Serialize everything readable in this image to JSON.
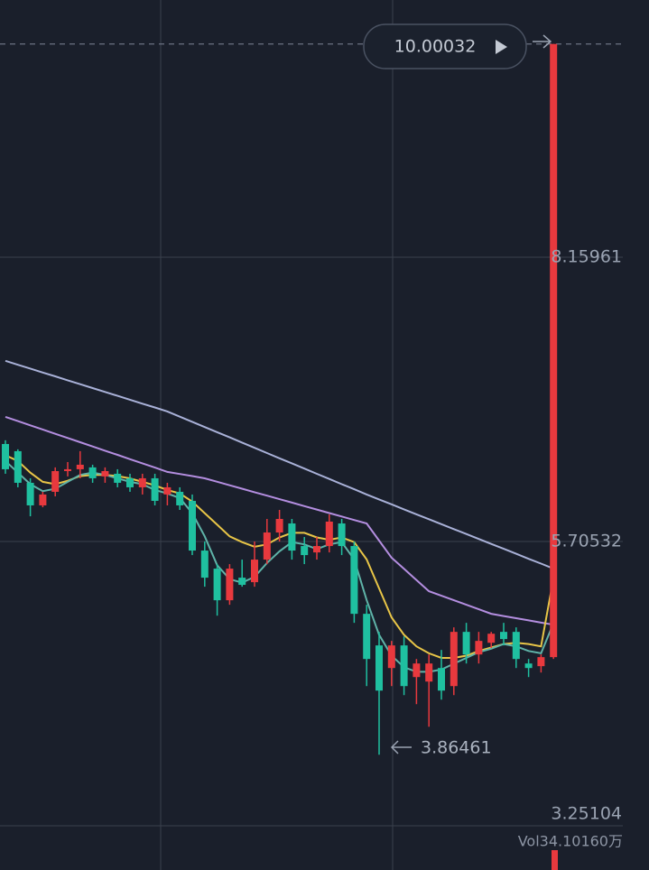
{
  "chart_data": {
    "type": "candlestick",
    "open": [
      6.547,
      6.485,
      6.212,
      6.017,
      6.134,
      6.313,
      6.329,
      6.345,
      6.267,
      6.29,
      6.251,
      6.173,
      6.251,
      6.111,
      6.134,
      6.056,
      5.627,
      5.471,
      5.198,
      5.393,
      5.354,
      5.549,
      5.783,
      5.861,
      5.666,
      5.611,
      5.666,
      5.861,
      5.666,
      5.081,
      4.808,
      4.613,
      4.808,
      4.535,
      4.496,
      4.613,
      4.457,
      4.925,
      4.73,
      4.831,
      4.925,
      4.925,
      4.652,
      4.629,
      4.707
    ],
    "high": [
      6.579,
      6.501,
      6.251,
      6.134,
      6.345,
      6.391,
      6.485,
      6.368,
      6.345,
      6.329,
      6.29,
      6.29,
      6.29,
      6.212,
      6.173,
      6.111,
      5.705,
      5.51,
      5.51,
      5.549,
      5.705,
      5.9,
      5.978,
      5.9,
      5.744,
      5.744,
      5.939,
      5.9,
      5.705,
      5.159,
      4.925,
      4.847,
      4.886,
      4.691,
      4.73,
      4.769,
      4.964,
      5.003,
      4.925,
      4.925,
      5.003,
      4.964,
      4.691,
      4.73,
      10.00032
    ],
    "low": [
      6.29,
      6.173,
      5.923,
      6.001,
      6.095,
      6.267,
      6.251,
      6.212,
      6.212,
      6.173,
      6.134,
      6.111,
      6.017,
      6.017,
      5.978,
      5.588,
      5.315,
      5.065,
      5.159,
      5.315,
      5.315,
      5.51,
      5.705,
      5.549,
      5.51,
      5.549,
      5.611,
      5.588,
      5.003,
      4.457,
      3.86461,
      4.457,
      4.379,
      4.301,
      4.106,
      4.34,
      4.379,
      4.652,
      4.652,
      4.785,
      4.808,
      4.613,
      4.535,
      4.574,
      4.691
    ],
    "close": [
      6.329,
      6.212,
      6.017,
      6.111,
      6.313,
      6.329,
      6.368,
      6.251,
      6.313,
      6.212,
      6.173,
      6.251,
      6.056,
      6.173,
      6.017,
      5.627,
      5.393,
      5.198,
      5.471,
      5.331,
      5.549,
      5.783,
      5.9,
      5.627,
      5.588,
      5.666,
      5.877,
      5.666,
      5.081,
      4.691,
      4.418,
      4.808,
      4.457,
      4.652,
      4.652,
      4.418,
      4.925,
      4.73,
      4.847,
      4.909,
      4.863,
      4.691,
      4.613,
      4.707,
      10.00032
    ],
    "up_color": "#e8393e",
    "down_color": "#1fc0a0",
    "series": [
      {
        "color": "#a9b1d8",
        "values": [
          7.265,
          7.231,
          7.198,
          7.164,
          7.131,
          7.097,
          7.063,
          7.03,
          6.996,
          6.963,
          6.929,
          6.895,
          6.862,
          6.828,
          6.783,
          6.738,
          6.693,
          6.649,
          6.604,
          6.559,
          6.514,
          6.469,
          6.424,
          6.38,
          6.335,
          6.29,
          6.245,
          6.2,
          6.156,
          6.111,
          6.068,
          6.026,
          5.983,
          5.94,
          5.898,
          5.855,
          5.812,
          5.77,
          5.727,
          5.684,
          5.642,
          5.599,
          5.556,
          5.514,
          5.471
        ]
      },
      {
        "color": "#b48ee0",
        "values": [
          6.781,
          6.745,
          6.708,
          6.672,
          6.635,
          6.599,
          6.562,
          6.526,
          6.489,
          6.453,
          6.416,
          6.38,
          6.343,
          6.306,
          6.288,
          6.27,
          6.251,
          6.221,
          6.191,
          6.161,
          6.131,
          6.101,
          6.071,
          6.041,
          6.011,
          5.981,
          5.951,
          5.921,
          5.891,
          5.861,
          5.713,
          5.565,
          5.469,
          5.372,
          5.276,
          5.237,
          5.198,
          5.159,
          5.12,
          5.081,
          5.062,
          5.043,
          5.024,
          5.005,
          4.987
        ]
      },
      {
        "color": "#e8c547",
        "values": [
          6.45,
          6.4,
          6.3,
          6.22,
          6.2,
          6.23,
          6.27,
          6.28,
          6.28,
          6.27,
          6.25,
          6.22,
          6.19,
          6.15,
          6.12,
          6.05,
          5.95,
          5.85,
          5.75,
          5.7,
          5.66,
          5.68,
          5.74,
          5.78,
          5.78,
          5.74,
          5.72,
          5.74,
          5.7,
          5.55,
          5.3,
          5.05,
          4.9,
          4.8,
          4.74,
          4.7,
          4.7,
          4.72,
          4.76,
          4.79,
          4.82,
          4.83,
          4.82,
          4.8,
          5.39
        ]
      },
      {
        "color": "#5fb3a8",
        "values": [
          6.4,
          6.3,
          6.2,
          6.14,
          6.16,
          6.22,
          6.28,
          6.3,
          6.28,
          6.25,
          6.22,
          6.2,
          6.15,
          6.12,
          6.08,
          5.95,
          5.75,
          5.5,
          5.38,
          5.35,
          5.4,
          5.52,
          5.62,
          5.7,
          5.68,
          5.64,
          5.68,
          5.7,
          5.55,
          5.2,
          4.9,
          4.72,
          4.62,
          4.58,
          4.58,
          4.6,
          4.65,
          4.7,
          4.75,
          4.78,
          4.82,
          4.8,
          4.76,
          4.74,
          5.0
        ]
      }
    ],
    "ylim": [
      3.25104,
      10.38
    ],
    "yticks": [
      8.15961,
      5.70532,
      3.25104
    ],
    "grid": true,
    "volume_label": "Vol34.10160万"
  }
}
